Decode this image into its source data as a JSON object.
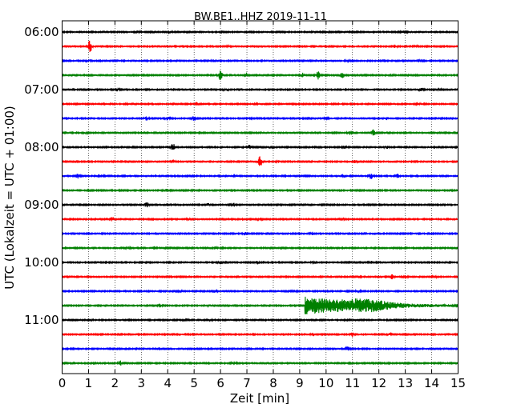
{
  "chart_data": {
    "type": "line",
    "title": "BW.BE1..HHZ 2019-11-11",
    "xlabel": "Zeit  [min]",
    "ylabel": "UTC (Lokalzeit = UTC + 01:00)",
    "xlim": [
      0,
      15
    ],
    "x_ticks": [
      "0",
      "1",
      "2",
      "3",
      "4",
      "5",
      "6",
      "7",
      "8",
      "9",
      "10",
      "11",
      "12",
      "13",
      "14",
      "15"
    ],
    "y_tick_labels": [
      {
        "row": 0,
        "label": "06:00"
      },
      {
        "row": 4,
        "label": "07:00"
      },
      {
        "row": 8,
        "label": "08:00"
      },
      {
        "row": 12,
        "label": "09:00"
      },
      {
        "row": 16,
        "label": "10:00"
      },
      {
        "row": 20,
        "label": "11:00"
      }
    ],
    "grid": "vertical dotted",
    "trace_colors": [
      "#000000",
      "#ff0000",
      "#0000ff",
      "#008000"
    ],
    "rows": [
      {
        "start": "06:00",
        "events": [
          {
            "t": 2.9,
            "amp": 0.15
          },
          {
            "t": 4.1,
            "amp": 0.12
          },
          {
            "t": 6.1,
            "amp": 0.15
          },
          {
            "t": 9.5,
            "amp": 0.1
          },
          {
            "t": 10.1,
            "amp": 0.12
          },
          {
            "t": 12.9,
            "amp": 0.12
          }
        ]
      },
      {
        "start": "06:15",
        "events": [
          {
            "t": 1.05,
            "amp": 0.9
          },
          {
            "t": 6.3,
            "amp": 0.2
          },
          {
            "t": 12.6,
            "amp": 0.2
          },
          {
            "t": 13.4,
            "amp": 0.12
          }
        ]
      },
      {
        "start": "06:30",
        "events": [
          {
            "t": 1.0,
            "amp": 0.2
          },
          {
            "t": 5.7,
            "amp": 0.25
          },
          {
            "t": 10.8,
            "amp": 0.12
          },
          {
            "t": 13.6,
            "amp": 0.12
          }
        ]
      },
      {
        "start": "06:45",
        "events": [
          {
            "t": 6.0,
            "amp": 0.7
          },
          {
            "t": 7.0,
            "amp": 0.35
          },
          {
            "t": 9.1,
            "amp": 0.3
          },
          {
            "t": 9.7,
            "amp": 0.6
          },
          {
            "t": 10.6,
            "amp": 0.55
          },
          {
            "t": 12.5,
            "amp": 0.15
          }
        ]
      },
      {
        "start": "07:00",
        "events": [
          {
            "t": 2.1,
            "amp": 0.15
          },
          {
            "t": 6.2,
            "amp": 0.25
          },
          {
            "t": 13.6,
            "amp": 0.2
          },
          {
            "t": 14.3,
            "amp": 0.1
          }
        ]
      },
      {
        "start": "07:15",
        "events": [
          {
            "t": 2.4,
            "amp": 0.1
          },
          {
            "t": 5.1,
            "amp": 0.25
          },
          {
            "t": 7.3,
            "amp": 0.15
          },
          {
            "t": 13.5,
            "amp": 0.15
          }
        ]
      },
      {
        "start": "07:30",
        "events": [
          {
            "t": 3.2,
            "amp": 0.25
          },
          {
            "t": 4.0,
            "amp": 0.25
          },
          {
            "t": 5.0,
            "amp": 0.35
          },
          {
            "t": 7.3,
            "amp": 0.15
          },
          {
            "t": 10.0,
            "amp": 0.15
          },
          {
            "t": 12.3,
            "amp": 0.2
          }
        ]
      },
      {
        "start": "07:45",
        "events": [
          {
            "t": 0.9,
            "amp": 0.15
          },
          {
            "t": 10.9,
            "amp": 0.3
          },
          {
            "t": 11.8,
            "amp": 0.5
          }
        ]
      },
      {
        "start": "08:00",
        "events": [
          {
            "t": 4.2,
            "amp": 0.6
          },
          {
            "t": 7.1,
            "amp": 0.35
          },
          {
            "t": 7.9,
            "amp": 0.2
          },
          {
            "t": 10.7,
            "amp": 0.2
          },
          {
            "t": 12.3,
            "amp": 0.2
          }
        ]
      },
      {
        "start": "08:15",
        "events": [
          {
            "t": 4.2,
            "amp": 0.25
          },
          {
            "t": 7.5,
            "amp": 0.8
          },
          {
            "t": 8.2,
            "amp": 0.15
          },
          {
            "t": 11.1,
            "amp": 0.2
          }
        ]
      },
      {
        "start": "08:30",
        "events": [
          {
            "t": 0.6,
            "amp": 0.3
          },
          {
            "t": 1.5,
            "amp": 0.15
          },
          {
            "t": 6.6,
            "amp": 0.15
          },
          {
            "t": 10.7,
            "amp": 0.2
          },
          {
            "t": 11.7,
            "amp": 0.45
          },
          {
            "t": 12.7,
            "amp": 0.3
          }
        ]
      },
      {
        "start": "08:45",
        "events": [
          {
            "t": 3.9,
            "amp": 0.12
          },
          {
            "t": 4.0,
            "amp": 0.12
          },
          {
            "t": 5.0,
            "amp": 0.15
          }
        ]
      },
      {
        "start": "09:00",
        "events": [
          {
            "t": 3.2,
            "amp": 0.35
          },
          {
            "t": 5.5,
            "amp": 0.2
          },
          {
            "t": 6.5,
            "amp": 0.25
          }
        ]
      },
      {
        "start": "09:15",
        "events": [
          {
            "t": 1.9,
            "amp": 0.3
          },
          {
            "t": 4.8,
            "amp": 0.15
          },
          {
            "t": 7.5,
            "amp": 0.2
          },
          {
            "t": 10.6,
            "amp": 0.15
          }
        ]
      },
      {
        "start": "09:30",
        "events": [
          {
            "t": 6.9,
            "amp": 0.2
          },
          {
            "t": 9.5,
            "amp": 0.2
          }
        ]
      },
      {
        "start": "09:45",
        "events": [
          {
            "t": 2.5,
            "amp": 0.15
          },
          {
            "t": 3.5,
            "amp": 0.3
          },
          {
            "t": 5.8,
            "amp": 0.15
          }
        ]
      },
      {
        "start": "10:00",
        "events": [
          {
            "t": 6.0,
            "amp": 0.2
          },
          {
            "t": 7.4,
            "amp": 0.2
          },
          {
            "t": 9.5,
            "amp": 0.2
          },
          {
            "t": 11.7,
            "amp": 0.15
          }
        ]
      },
      {
        "start": "10:15",
        "events": [
          {
            "t": 12.5,
            "amp": 0.3
          },
          {
            "t": 13.0,
            "amp": 0.2
          },
          {
            "t": 14.1,
            "amp": 0.15
          }
        ]
      },
      {
        "start": "10:30",
        "events": [
          {
            "t": 4.5,
            "amp": 0.15
          },
          {
            "t": 5.8,
            "amp": 0.25
          },
          {
            "t": 8.8,
            "amp": 0.15
          },
          {
            "t": 11.2,
            "amp": 0.2
          }
        ]
      },
      {
        "start": "10:45",
        "events": [
          {
            "t": 3.7,
            "amp": 0.25
          },
          {
            "t": 5.6,
            "amp": 0.15
          },
          {
            "t": 9.2,
            "amp": 2.2,
            "quake": true
          }
        ]
      },
      {
        "start": "11:00",
        "events": [
          {
            "t": 1.1,
            "amp": 0.2
          },
          {
            "t": 4.7,
            "amp": 0.2
          },
          {
            "t": 5.6,
            "amp": 0.15
          },
          {
            "t": 12.4,
            "amp": 0.15
          }
        ]
      },
      {
        "start": "11:15",
        "events": [
          {
            "t": 9.5,
            "amp": 0.2
          },
          {
            "t": 11.0,
            "amp": 0.35
          },
          {
            "t": 12.4,
            "amp": 0.15
          }
        ]
      },
      {
        "start": "11:30",
        "events": [
          {
            "t": 10.8,
            "amp": 0.4
          }
        ]
      },
      {
        "start": "11:45",
        "events": [
          {
            "t": 2.2,
            "amp": 0.35
          },
          {
            "t": 6.5,
            "amp": 0.15
          },
          {
            "t": 12.3,
            "amp": 0.15
          }
        ]
      }
    ]
  }
}
